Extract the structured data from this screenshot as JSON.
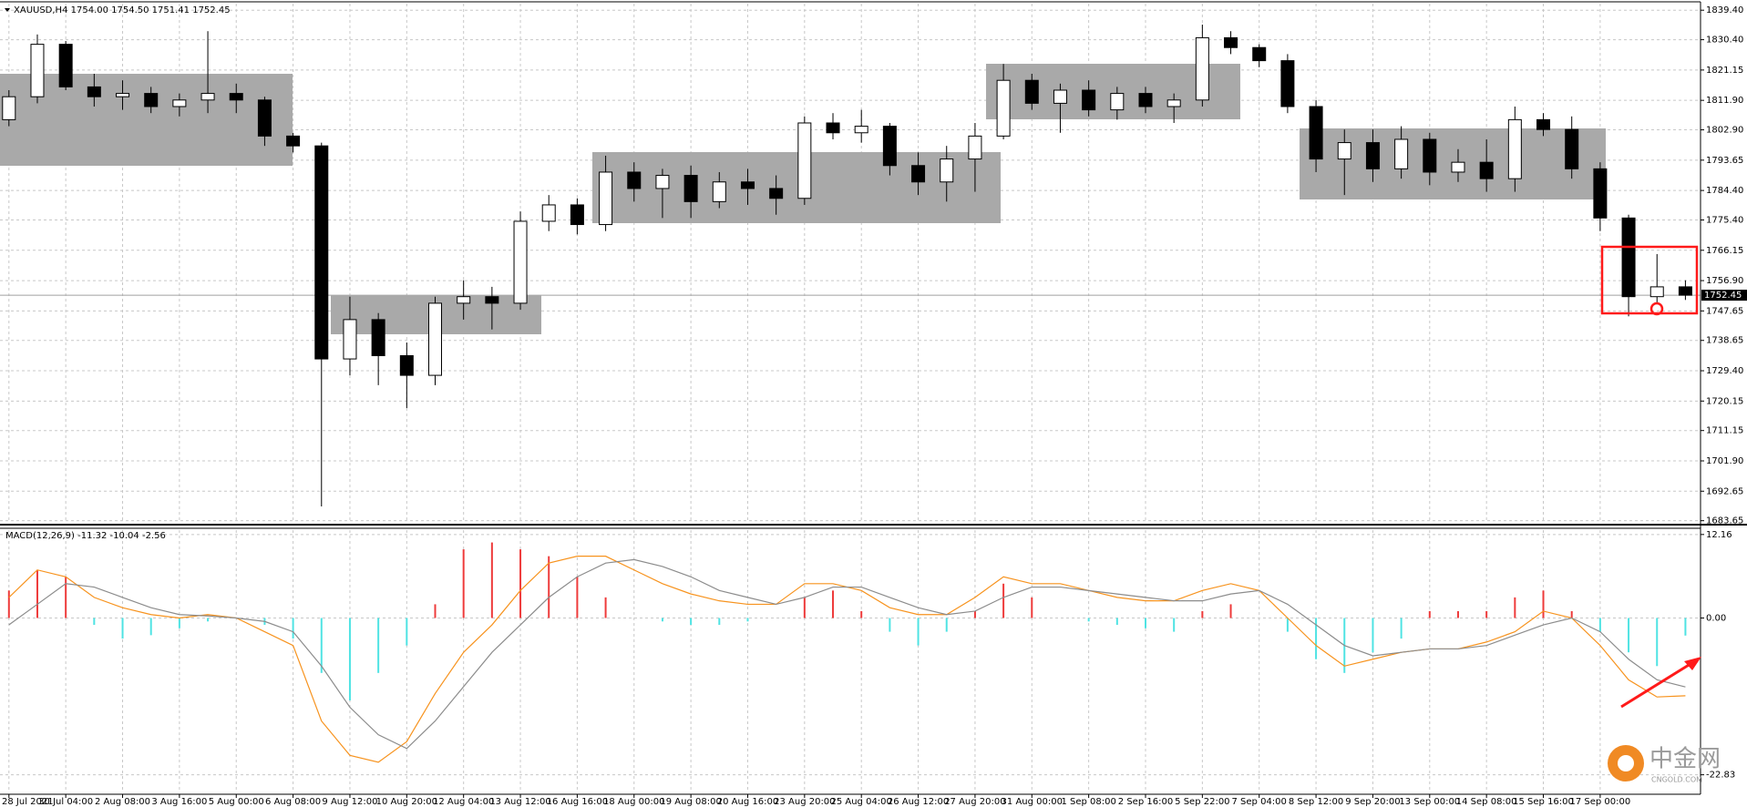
{
  "chart_data": [
    {
      "type": "candlestick",
      "header": "XAUUSD,H4  1754.00 1754.50 1751.41 1752.45",
      "categories": [
        "28 Jul 2021",
        null,
        "30 Jul 04:00",
        null,
        "2 Aug 08:00",
        null,
        "3 Aug 16:00",
        null,
        "5 Aug 00:00",
        null,
        "6 Aug 08:00",
        null,
        "9 Aug 12:00",
        null,
        "10 Aug 20:00",
        null,
        "12 Aug 04:00",
        null,
        "13 Aug 12:00",
        null,
        "16 Aug 16:00",
        null,
        "18 Aug 00:00",
        null,
        "19 Aug 08:00",
        null,
        "20 Aug 16:00",
        null,
        "23 Aug 20:00",
        null,
        "25 Aug 04:00",
        null,
        "26 Aug 12:00",
        null,
        "27 Aug 20:00",
        null,
        "31 Aug 00:00",
        null,
        "1 Sep 08:00",
        null,
        "2 Sep 16:00",
        null,
        "5 Sep 22:00",
        null,
        "7 Sep 04:00",
        null,
        "8 Sep 12:00",
        null,
        "9 Sep 20:00",
        null,
        "13 Sep 00:00",
        null,
        "14 Sep 08:00",
        null,
        "15 Sep 16:00",
        null,
        "17 Sep 00:00",
        null,
        null,
        null
      ],
      "open": [
        1806,
        1813,
        1829,
        1816,
        1813,
        1814,
        1810,
        1812,
        1814,
        1812,
        1801,
        1798,
        1733,
        1745,
        1734,
        1728,
        1750,
        1752,
        1750,
        1775,
        1780,
        1774,
        1790,
        1785,
        1789,
        1781,
        1787,
        1785,
        1782,
        1805,
        1802,
        1804,
        1792,
        1787,
        1794,
        1801,
        1818,
        1811,
        1815,
        1809,
        1814,
        1810,
        1812,
        1831,
        1828,
        1824,
        1810,
        1794,
        1799,
        1791,
        1800,
        1790,
        1793,
        1788,
        1806,
        1803,
        1791,
        1776,
        1752,
        1755
      ],
      "high": [
        1815,
        1832,
        1830,
        1820,
        1818,
        1816,
        1814,
        1833,
        1817,
        1813,
        1802,
        1799,
        1752,
        1747,
        1738,
        1752,
        1757,
        1755,
        1778,
        1783,
        1782,
        1795,
        1793,
        1791,
        1792,
        1790,
        1791,
        1789,
        1807,
        1808,
        1809,
        1805,
        1796,
        1798,
        1805,
        1823,
        1820,
        1817,
        1818,
        1816,
        1816,
        1814,
        1835,
        1833,
        1829,
        1826,
        1812,
        1803,
        1803,
        1804,
        1802,
        1797,
        1800,
        1810,
        1808,
        1807,
        1793,
        1777,
        1765,
        1757
      ],
      "low": [
        1804,
        1811,
        1815,
        1810,
        1809,
        1808,
        1807,
        1808,
        1808,
        1798,
        1796,
        1688,
        1728,
        1725,
        1718,
        1725,
        1745,
        1742,
        1748,
        1772,
        1771,
        1772,
        1781,
        1776,
        1776,
        1779,
        1780,
        1777,
        1780,
        1800,
        1799,
        1789,
        1783,
        1781,
        1784,
        1800,
        1809,
        1802,
        1807,
        1806,
        1808,
        1805,
        1810,
        1826,
        1822,
        1808,
        1790,
        1783,
        1787,
        1788,
        1786,
        1787,
        1784,
        1784,
        1801,
        1788,
        1772,
        1746,
        1750,
        1751
      ],
      "close": [
        1813,
        1829,
        1816,
        1813,
        1814,
        1810,
        1812,
        1814,
        1812,
        1801,
        1798,
        1733,
        1745,
        1734,
        1728,
        1750,
        1752,
        1750,
        1775,
        1780,
        1774,
        1790,
        1785,
        1789,
        1781,
        1787,
        1785,
        1782,
        1805,
        1802,
        1804,
        1792,
        1787,
        1794,
        1801,
        1818,
        1811,
        1815,
        1809,
        1814,
        1810,
        1812,
        1831,
        1828,
        1824,
        1810,
        1794,
        1799,
        1791,
        1800,
        1790,
        1793,
        1788,
        1806,
        1803,
        1791,
        1776,
        1752,
        1755,
        1752.45
      ],
      "up_color": "#ffffff",
      "down_color": "#000000",
      "ylim": [
        1683.0,
        1841.4
      ],
      "yticks": [
        {
          "value": 1839.4,
          "label": "1839.40"
        },
        {
          "value": 1830.4,
          "label": "1830.40"
        },
        {
          "value": 1821.15,
          "label": "1821.15"
        },
        {
          "value": 1811.9,
          "label": "1811.90"
        },
        {
          "value": 1802.9,
          "label": "1802.90"
        },
        {
          "value": 1793.65,
          "label": "1793.65"
        },
        {
          "value": 1784.4,
          "label": "1784.40"
        },
        {
          "value": 1775.4,
          "label": "1775.40"
        },
        {
          "value": 1766.15,
          "label": "1766.15"
        },
        {
          "value": 1756.9,
          "label": "1756.90"
        },
        {
          "value": 1747.65,
          "label": "1747.65"
        },
        {
          "value": 1738.65,
          "label": "1738.65"
        },
        {
          "value": 1729.4,
          "label": "1729.40"
        },
        {
          "value": 1720.15,
          "label": "1720.15"
        },
        {
          "value": 1711.15,
          "label": "1711.15"
        },
        {
          "value": 1701.9,
          "label": "1701.90"
        },
        {
          "value": 1692.65,
          "label": "1692.65"
        },
        {
          "value": 1683.65,
          "label": "1683.65"
        }
      ],
      "last": {
        "value": 1752.45,
        "label": "1752.45"
      },
      "grid": true
    },
    {
      "type": "macd",
      "header": "MACD(12,26,9) -11.32 -10.04 -2.56",
      "histogram": {
        "up_color": "#ee3b3b",
        "down_color": "#4fe3e3",
        "values": [
          4,
          7,
          6,
          -1,
          -3,
          -2.5,
          -1.5,
          -0.5,
          0,
          -1,
          -3,
          -8,
          -12,
          -8,
          -4,
          2,
          10,
          11,
          10,
          9,
          6,
          3,
          0,
          -0.5,
          -1,
          -1,
          -0.5,
          0,
          3,
          4,
          1,
          -2,
          -4,
          -2,
          1,
          5,
          3,
          0,
          -0.5,
          -1,
          -1.5,
          -2,
          1,
          2,
          0,
          -2,
          -6,
          -8,
          -5,
          -3,
          1,
          1,
          1,
          3,
          4,
          1,
          -2,
          -5,
          -7,
          -2.56
        ]
      },
      "series": [
        {
          "color": "#f7931e",
          "values": [
            3,
            7,
            6,
            3,
            1.5,
            0.5,
            0,
            0.5,
            0,
            -2,
            -4,
            -15,
            -20,
            -21,
            -18,
            -11,
            -5,
            -1,
            4,
            8,
            9,
            9,
            7,
            5,
            3.5,
            2.5,
            2,
            2,
            5,
            5,
            4,
            1.5,
            0.5,
            0.5,
            3,
            6,
            5,
            5,
            4,
            3,
            2.5,
            2.5,
            4,
            5,
            4,
            0,
            -4,
            -7,
            -6,
            -5,
            -4.5,
            -4.5,
            -3.5,
            -2,
            1,
            0,
            -4,
            -9,
            -11.5,
            -11.32
          ]
        },
        {
          "color": "#8c8c8c",
          "values": [
            -1,
            2,
            5,
            4.5,
            3,
            1.5,
            0.5,
            0.3,
            0,
            -0.5,
            -2,
            -7,
            -13,
            -17,
            -19,
            -15,
            -10,
            -5,
            -1,
            3,
            6,
            8,
            8.5,
            7.5,
            6,
            4,
            3,
            2,
            3,
            4.5,
            4.5,
            3,
            1.5,
            0.5,
            1,
            3,
            4.5,
            4.5,
            4,
            3.5,
            3,
            2.5,
            2.5,
            3.5,
            4,
            2,
            -1,
            -4,
            -5.5,
            -5,
            -4.5,
            -4.5,
            -4,
            -2.5,
            -1,
            0,
            -2,
            -6,
            -9,
            -10.04
          ]
        }
      ],
      "ylim": [
        -25.4,
        12.8
      ],
      "yticks": [
        12.16,
        {
          "value": 0,
          "label": "0.00"
        },
        -22.83
      ],
      "grid": true
    }
  ],
  "watermark": {
    "name": "中金网",
    "site": "CNGOLD.COM"
  }
}
